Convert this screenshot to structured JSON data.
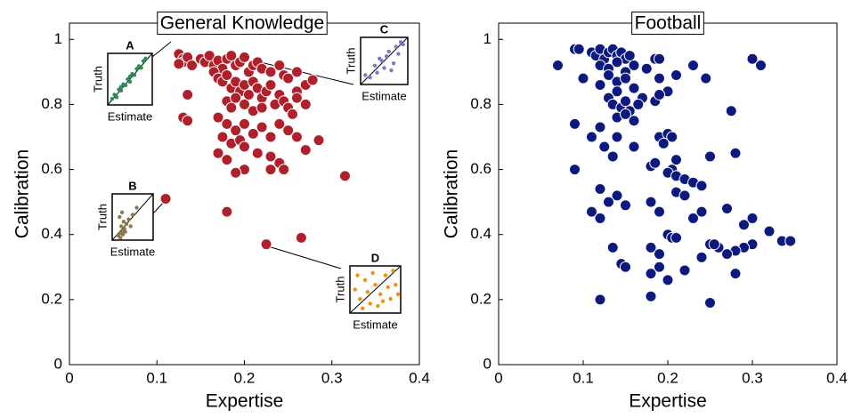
{
  "chart_data": [
    {
      "type": "scatter",
      "title": "General Knowledge",
      "x_label": "Expertise",
      "y_label": "Calibration",
      "xlim": [
        0,
        0.4
      ],
      "ylim": [
        0,
        1.05
      ],
      "xticks": [
        0,
        0.1,
        0.2,
        0.3,
        0.4
      ],
      "yticks": [
        0,
        0.2,
        0.4,
        0.6,
        0.8,
        1
      ],
      "color": "#b0202a",
      "x": [
        0.125,
        0.13,
        0.13,
        0.135,
        0.125,
        0.14,
        0.15,
        0.155,
        0.16,
        0.165,
        0.17,
        0.175,
        0.18,
        0.185,
        0.19,
        0.195,
        0.2,
        0.205,
        0.21,
        0.215,
        0.22,
        0.23,
        0.24,
        0.245,
        0.25,
        0.26,
        0.26,
        0.27,
        0.278,
        0.165,
        0.17,
        0.175,
        0.18,
        0.185,
        0.19,
        0.195,
        0.2,
        0.205,
        0.21,
        0.215,
        0.22,
        0.225,
        0.23,
        0.235,
        0.24,
        0.245,
        0.25,
        0.255,
        0.26,
        0.27,
        0.18,
        0.185,
        0.19,
        0.2,
        0.21,
        0.22,
        0.135,
        0.13,
        0.135,
        0.17,
        0.18,
        0.19,
        0.2,
        0.21,
        0.22,
        0.23,
        0.24,
        0.25,
        0.26,
        0.175,
        0.185,
        0.195,
        0.17,
        0.18,
        0.2,
        0.215,
        0.23,
        0.24,
        0.27,
        0.285,
        0.23,
        0.245,
        0.2,
        0.19,
        0.315,
        0.11,
        0.18,
        0.225,
        0.265
      ],
      "values": [
        0.955,
        0.94,
        0.93,
        0.945,
        0.925,
        0.92,
        0.94,
        0.93,
        0.95,
        0.92,
        0.935,
        0.91,
        0.94,
        0.95,
        0.92,
        0.93,
        0.945,
        0.9,
        0.92,
        0.93,
        0.91,
        0.9,
        0.92,
        0.89,
        0.88,
        0.9,
        0.84,
        0.86,
        0.875,
        0.9,
        0.88,
        0.87,
        0.89,
        0.85,
        0.87,
        0.84,
        0.86,
        0.83,
        0.87,
        0.85,
        0.82,
        0.84,
        0.86,
        0.8,
        0.83,
        0.81,
        0.79,
        0.77,
        0.82,
        0.8,
        0.81,
        0.79,
        0.82,
        0.8,
        0.78,
        0.79,
        0.83,
        0.76,
        0.75,
        0.76,
        0.74,
        0.72,
        0.74,
        0.71,
        0.73,
        0.7,
        0.74,
        0.72,
        0.7,
        0.7,
        0.68,
        0.69,
        0.65,
        0.63,
        0.67,
        0.65,
        0.64,
        0.62,
        0.66,
        0.69,
        0.6,
        0.6,
        0.6,
        0.59,
        0.58,
        0.51,
        0.47,
        0.37,
        0.39
      ],
      "insets": [
        {
          "label": "A",
          "x_label": "Estimate",
          "y_label": "Truth",
          "color": "#2e8b57",
          "xlim": [
            0,
            1
          ],
          "ylim": [
            0,
            1
          ],
          "x": [
            0.1,
            0.15,
            0.2,
            0.25,
            0.3,
            0.35,
            0.4,
            0.45,
            0.5,
            0.55,
            0.6,
            0.65,
            0.7,
            0.75,
            0.8,
            0.85,
            0.3,
            0.5
          ],
          "y": [
            0.12,
            0.2,
            0.15,
            0.3,
            0.28,
            0.4,
            0.38,
            0.5,
            0.45,
            0.6,
            0.58,
            0.7,
            0.75,
            0.72,
            0.85,
            0.9,
            0.35,
            0.55
          ]
        },
        {
          "label": "B",
          "x_label": "Estimate",
          "y_label": "Truth",
          "color": "#8b7d4b",
          "xlim": [
            0,
            1
          ],
          "ylim": [
            0,
            1
          ],
          "x": [
            0.15,
            0.2,
            0.22,
            0.25,
            0.28,
            0.3,
            0.18,
            0.24,
            0.35,
            0.4,
            0.5,
            0.6,
            0.2,
            0.26,
            0.32,
            0.45
          ],
          "y": [
            0.1,
            0.15,
            0.3,
            0.2,
            0.4,
            0.25,
            0.5,
            0.6,
            0.35,
            0.45,
            0.55,
            0.7,
            0.05,
            0.12,
            0.18,
            0.3
          ]
        },
        {
          "label": "C",
          "x_label": "Estimate",
          "y_label": "Truth",
          "color": "#7b7bc8",
          "xlim": [
            0,
            1
          ],
          "ylim": [
            0,
            1
          ],
          "x": [
            0.1,
            0.2,
            0.3,
            0.35,
            0.45,
            0.5,
            0.55,
            0.6,
            0.7,
            0.75,
            0.8,
            0.85,
            0.9,
            0.4,
            0.65
          ],
          "y": [
            0.2,
            0.15,
            0.4,
            0.25,
            0.5,
            0.35,
            0.6,
            0.7,
            0.45,
            0.8,
            0.65,
            0.9,
            0.85,
            0.55,
            0.3
          ]
        },
        {
          "label": "D",
          "x_label": "Estimate",
          "y_label": "Truth",
          "color": "#f0900f",
          "xlim": [
            0,
            1
          ],
          "ylim": [
            0,
            1
          ],
          "x": [
            0.1,
            0.2,
            0.3,
            0.4,
            0.5,
            0.6,
            0.7,
            0.8,
            0.9,
            0.15,
            0.35,
            0.55,
            0.75,
            0.85,
            0.25,
            0.45,
            0.65,
            0.95
          ],
          "y": [
            0.5,
            0.3,
            0.7,
            0.2,
            0.6,
            0.4,
            0.8,
            0.3,
            0.6,
            0.8,
            0.45,
            0.15,
            0.55,
            0.9,
            0.1,
            0.85,
            0.25,
            0.4
          ]
        }
      ]
    },
    {
      "type": "scatter",
      "title": "Football",
      "x_label": "Expertise",
      "y_label": "Calibration",
      "xlim": [
        0,
        0.4
      ],
      "ylim": [
        0,
        1.05
      ],
      "xticks": [
        0,
        0.1,
        0.2,
        0.3,
        0.4
      ],
      "yticks": [
        0,
        0.2,
        0.4,
        0.6,
        0.8,
        1
      ],
      "color": "#0c1a80",
      "x": [
        0.07,
        0.09,
        0.095,
        0.11,
        0.115,
        0.12,
        0.125,
        0.13,
        0.135,
        0.14,
        0.145,
        0.15,
        0.155,
        0.12,
        0.13,
        0.14,
        0.15,
        0.16,
        0.175,
        0.185,
        0.19,
        0.21,
        0.23,
        0.245,
        0.3,
        0.31,
        0.1,
        0.12,
        0.13,
        0.14,
        0.15,
        0.16,
        0.19,
        0.2,
        0.13,
        0.135,
        0.14,
        0.145,
        0.15,
        0.155,
        0.17,
        0.165,
        0.185,
        0.19,
        0.09,
        0.11,
        0.12,
        0.14,
        0.15,
        0.16,
        0.125,
        0.135,
        0.14,
        0.16,
        0.19,
        0.2,
        0.205,
        0.195,
        0.205,
        0.21,
        0.25,
        0.275,
        0.28,
        0.18,
        0.185,
        0.2,
        0.21,
        0.22,
        0.23,
        0.24,
        0.21,
        0.22,
        0.09,
        0.12,
        0.14,
        0.15,
        0.11,
        0.12,
        0.13,
        0.18,
        0.19,
        0.23,
        0.24,
        0.27,
        0.3,
        0.29,
        0.32,
        0.335,
        0.345,
        0.3,
        0.29,
        0.28,
        0.27,
        0.26,
        0.2,
        0.205,
        0.21,
        0.18,
        0.19,
        0.19,
        0.22,
        0.24,
        0.25,
        0.255,
        0.145,
        0.15,
        0.18,
        0.2,
        0.28,
        0.12,
        0.18,
        0.25,
        0.135
      ],
      "values": [
        0.92,
        0.97,
        0.97,
        0.96,
        0.95,
        0.97,
        0.94,
        0.96,
        0.97,
        0.95,
        0.96,
        0.94,
        0.95,
        0.92,
        0.91,
        0.93,
        0.9,
        0.92,
        0.91,
        0.94,
        0.94,
        0.89,
        0.92,
        0.88,
        0.94,
        0.92,
        0.88,
        0.86,
        0.89,
        0.87,
        0.88,
        0.85,
        0.88,
        0.84,
        0.82,
        0.8,
        0.84,
        0.79,
        0.81,
        0.78,
        0.82,
        0.8,
        0.81,
        0.83,
        0.74,
        0.7,
        0.73,
        0.76,
        0.77,
        0.75,
        0.67,
        0.64,
        0.7,
        0.67,
        0.7,
        0.71,
        0.7,
        0.68,
        0.6,
        0.63,
        0.64,
        0.78,
        0.65,
        0.61,
        0.62,
        0.59,
        0.58,
        0.57,
        0.56,
        0.55,
        0.53,
        0.52,
        0.6,
        0.54,
        0.52,
        0.49,
        0.47,
        0.45,
        0.5,
        0.5,
        0.47,
        0.45,
        0.47,
        0.48,
        0.45,
        0.43,
        0.41,
        0.38,
        0.38,
        0.37,
        0.36,
        0.35,
        0.34,
        0.36,
        0.4,
        0.39,
        0.39,
        0.36,
        0.34,
        0.3,
        0.29,
        0.33,
        0.37,
        0.37,
        0.31,
        0.3,
        0.28,
        0.26,
        0.28,
        0.2,
        0.21,
        0.19,
        0.36
      ]
    }
  ]
}
